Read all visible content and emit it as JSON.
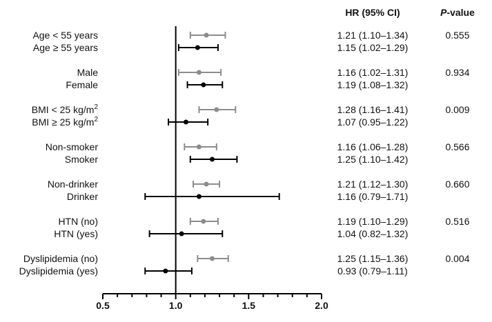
{
  "chart_data": {
    "type": "forest",
    "title": "",
    "xlabel": "",
    "ylabel": "",
    "xlim": [
      0.5,
      2.0
    ],
    "xticks": [
      "0.5",
      "1.0",
      "1.5",
      "2.0"
    ],
    "reference_line": 1.0,
    "headers": {
      "hr": "HR (95% CI)",
      "p_italic": "P",
      "p_rest": "-value"
    },
    "groups": [
      {
        "p_value": "0.555",
        "rows": [
          {
            "label": "Age < 55 years",
            "hr": 1.21,
            "lo": 1.1,
            "hi": 1.34,
            "text": "1.21 (1.10–1.34)",
            "color": "#8c8c8c"
          },
          {
            "label": "Age ≥ 55 years",
            "hr": 1.15,
            "lo": 1.02,
            "hi": 1.29,
            "text": "1.15 (1.02–1.29)",
            "color": "#000000"
          }
        ]
      },
      {
        "p_value": "0.934",
        "rows": [
          {
            "label": "Male",
            "hr": 1.16,
            "lo": 1.02,
            "hi": 1.31,
            "text": "1.16 (1.02–1.31)",
            "color": "#8c8c8c"
          },
          {
            "label": "Female",
            "hr": 1.19,
            "lo": 1.08,
            "hi": 1.32,
            "text": "1.19 (1.08–1.32)",
            "color": "#000000"
          }
        ]
      },
      {
        "p_value": "0.009",
        "rows": [
          {
            "label": "BMI < 25 kg/m",
            "sup": "2",
            "hr": 1.28,
            "lo": 1.16,
            "hi": 1.41,
            "text": "1.28 (1.16–1.41)",
            "color": "#8c8c8c"
          },
          {
            "label": "BMI ≥ 25 kg/m",
            "sup": "2",
            "hr": 1.07,
            "lo": 0.95,
            "hi": 1.22,
            "text": "1.07 (0.95–1.22)",
            "color": "#000000"
          }
        ]
      },
      {
        "p_value": "0.566",
        "rows": [
          {
            "label": "Non-smoker",
            "hr": 1.16,
            "lo": 1.06,
            "hi": 1.28,
            "text": "1.16 (1.06–1.28)",
            "color": "#8c8c8c"
          },
          {
            "label": "Smoker",
            "hr": 1.25,
            "lo": 1.1,
            "hi": 1.42,
            "text": "1.25 (1.10–1.42)",
            "color": "#000000"
          }
        ]
      },
      {
        "p_value": "0.660",
        "rows": [
          {
            "label": "Non-drinker",
            "hr": 1.21,
            "lo": 1.12,
            "hi": 1.3,
            "text": "1.21 (1.12–1.30)",
            "color": "#8c8c8c"
          },
          {
            "label": "Drinker",
            "hr": 1.16,
            "lo": 0.79,
            "hi": 1.71,
            "text": "1.16 (0.79–1.71)",
            "color": "#000000"
          }
        ]
      },
      {
        "p_value": "0.516",
        "rows": [
          {
            "label": "HTN (no)",
            "hr": 1.19,
            "lo": 1.1,
            "hi": 1.29,
            "text": "1.19 (1.10–1.29)",
            "color": "#8c8c8c"
          },
          {
            "label": "HTN (yes)",
            "hr": 1.04,
            "lo": 0.82,
            "hi": 1.32,
            "text": "1.04 (0.82–1.32)",
            "color": "#000000"
          }
        ]
      },
      {
        "p_value": "0.004",
        "rows": [
          {
            "label": "Dyslipidemia (no)",
            "hr": 1.25,
            "lo": 1.15,
            "hi": 1.36,
            "text": "1.25 (1.15–1.36)",
            "color": "#8c8c8c"
          },
          {
            "label": "Dyslipidemia (yes)",
            "hr": 0.93,
            "lo": 0.79,
            "hi": 1.11,
            "text": "0.93 (0.79–1.11)",
            "color": "#000000"
          }
        ]
      }
    ]
  }
}
